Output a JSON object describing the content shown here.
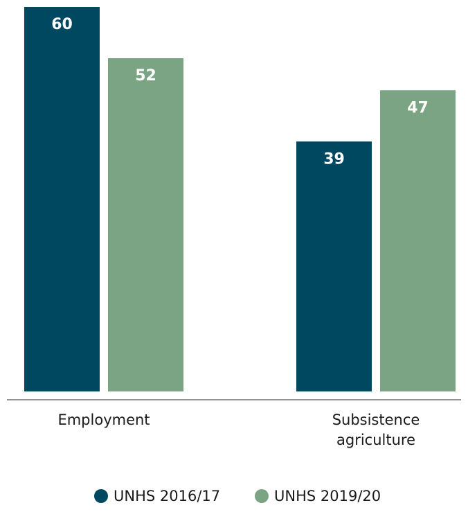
{
  "chart_data": {
    "type": "bar",
    "title": "",
    "xlabel": "",
    "ylabel": "",
    "ylim": [
      0,
      60
    ],
    "grid": false,
    "legend_position": "bottom",
    "categories": [
      [
        "Employment"
      ],
      [
        "Subsistence",
        "agriculture"
      ]
    ],
    "series": [
      {
        "name": "UNHS 2016/17",
        "color": "#004760",
        "values": [
          60,
          39
        ]
      },
      {
        "name": "UNHS 2019/20",
        "color": "#7aa483",
        "values": [
          52,
          47
        ]
      }
    ]
  }
}
